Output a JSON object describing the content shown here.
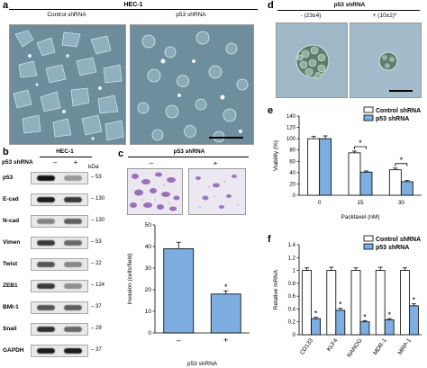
{
  "panel_a": {
    "letter": "a",
    "header": "HEC-1",
    "left_caption": "Control shRNA",
    "right_caption": "p53 shRNA"
  },
  "panel_b": {
    "letter": "b",
    "header": "HEC-1",
    "row_label": "p53 shRNA",
    "minus": "–",
    "plus": "+",
    "kda_label": "kDa",
    "rows": [
      {
        "name": "p53",
        "kda": "53",
        "control": 0.95,
        "knockdown": 0.25
      },
      {
        "name": "E-cad",
        "kda": "130",
        "control": 0.9,
        "knockdown": 0.75
      },
      {
        "name": "N-cad",
        "kda": "130",
        "control": 0.35,
        "knockdown": 0.55
      },
      {
        "name": "Vimen",
        "kda": "53",
        "control": 0.75,
        "knockdown": 0.5
      },
      {
        "name": "Twist",
        "kda": "22",
        "control": 0.6,
        "knockdown": 0.35
      },
      {
        "name": "ZEB1",
        "kda": "124",
        "control": 0.75,
        "knockdown": 0.3
      },
      {
        "name": "BMI-1",
        "kda": "37",
        "control": 0.6,
        "knockdown": 0.55
      },
      {
        "name": "Snail",
        "kda": "29",
        "control": 0.8,
        "knockdown": 0.5
      },
      {
        "name": "GAPDH",
        "kda": "37",
        "control": 0.9,
        "knockdown": 0.9
      }
    ]
  },
  "panel_c": {
    "letter": "c",
    "header": "p53 shRNA",
    "minus": "–",
    "plus": "+",
    "sig": "*"
  },
  "panel_d": {
    "letter": "d",
    "header": "p53 shRNA",
    "left_caption": "- (23±4)",
    "right_caption": "+ (10±2)*"
  },
  "panel_e": {
    "letter": "e"
  },
  "panel_f": {
    "letter": "f"
  },
  "colors": {
    "control_fill": "#ffffff",
    "shrna_fill": "#7eaee0",
    "micro_bg": "#6d8d9c",
    "transwell_bg": "#ebe6f0",
    "transwell_stain": "#8a5db0",
    "sphere_bg": "#9fb8c8"
  },
  "chart_data": [
    {
      "id": "c",
      "type": "bar",
      "categories": [
        "–",
        "+"
      ],
      "values": [
        39,
        18
      ],
      "errors": [
        3,
        1.5
      ],
      "ylabel": "Invasion (cells/field)",
      "xlabel": "p53 shRNA",
      "ylim": [
        0,
        50
      ],
      "yticks": [
        0,
        10,
        20,
        30,
        40,
        50
      ],
      "significance": [
        "",
        "*"
      ]
    },
    {
      "id": "e",
      "type": "bar",
      "categories": [
        "0",
        "15",
        "30"
      ],
      "series": [
        {
          "name": "Control shRNA",
          "values": [
            100,
            75,
            45
          ],
          "errors": [
            4,
            3,
            3
          ]
        },
        {
          "name": "p53 shRNA",
          "values": [
            100,
            41,
            24
          ],
          "errors": [
            5,
            2,
            2
          ]
        }
      ],
      "ylabel": "Viability (%)",
      "xlabel": "Paclitaxel (nM)",
      "ylim": [
        0,
        140
      ],
      "yticks": [
        0,
        20,
        40,
        60,
        80,
        100,
        120,
        140
      ],
      "significance": [
        "",
        "*",
        "*"
      ],
      "legend_position": "top-right"
    },
    {
      "id": "f",
      "type": "bar",
      "categories": [
        "CD133",
        "KLF4",
        "NANOG",
        "MDR-1",
        "MRP-1"
      ],
      "series": [
        {
          "name": "Control shRNA",
          "values": [
            1,
            1,
            1,
            1,
            1
          ],
          "errors": [
            0.04,
            0.05,
            0.04,
            0.05,
            0.04
          ]
        },
        {
          "name": "p53 shRNA",
          "values": [
            0.25,
            0.38,
            0.2,
            0.23,
            0.45
          ],
          "errors": [
            0.02,
            0.03,
            0.02,
            0.02,
            0.03
          ]
        }
      ],
      "ylabel": "Relative mRNA",
      "ylim": [
        0,
        1.4
      ],
      "yticks": [
        0,
        0.2,
        0.4,
        0.6,
        0.8,
        1,
        1.2,
        1.4
      ],
      "significance": [
        "*",
        "*",
        "*",
        "*",
        "*"
      ],
      "legend_position": "top-right"
    }
  ]
}
